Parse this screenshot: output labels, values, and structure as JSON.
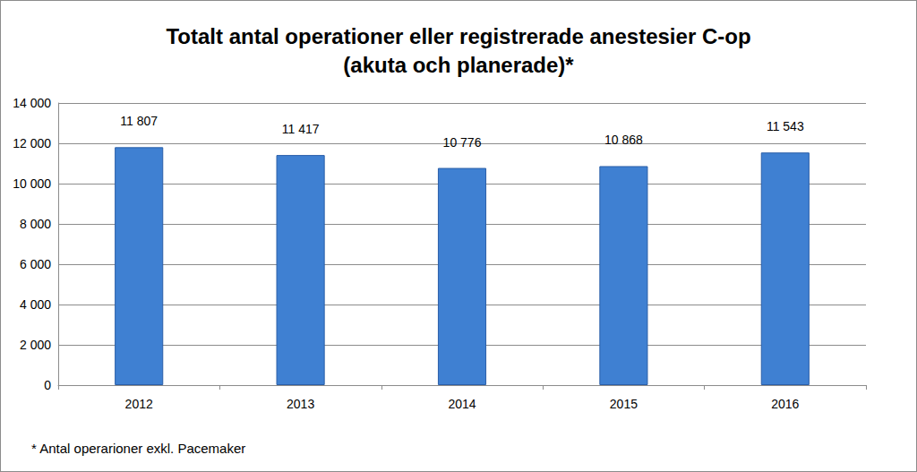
{
  "chart_data": {
    "type": "bar",
    "title": "Totalt antal operationer eller registrerade anestesier C-op\n(akuta och planerade)*",
    "categories": [
      "2012",
      "2013",
      "2014",
      "2015",
      "2016"
    ],
    "values": [
      11807,
      11417,
      10776,
      10868,
      11543
    ],
    "value_labels": [
      "11 807",
      "11 417",
      "10 776",
      "10 868",
      "11 543"
    ],
    "data_labels": true,
    "color": "#3f80d2",
    "ylim": [
      0,
      14000
    ],
    "yticks": [
      0,
      {
        "value": 2000,
        "label": "2 000"
      },
      {
        "value": 4000,
        "label": "4 000"
      },
      {
        "value": 6000,
        "label": "6 000"
      },
      {
        "value": 8000,
        "label": "8 000"
      },
      {
        "value": 10000,
        "label": "10 000"
      },
      {
        "value": 12000,
        "label": "12 000"
      },
      {
        "value": 14000,
        "label": "14 000"
      }
    ],
    "grid": true,
    "annotations": [
      "* Antal operarioner exkl. Pacemaker"
    ]
  }
}
